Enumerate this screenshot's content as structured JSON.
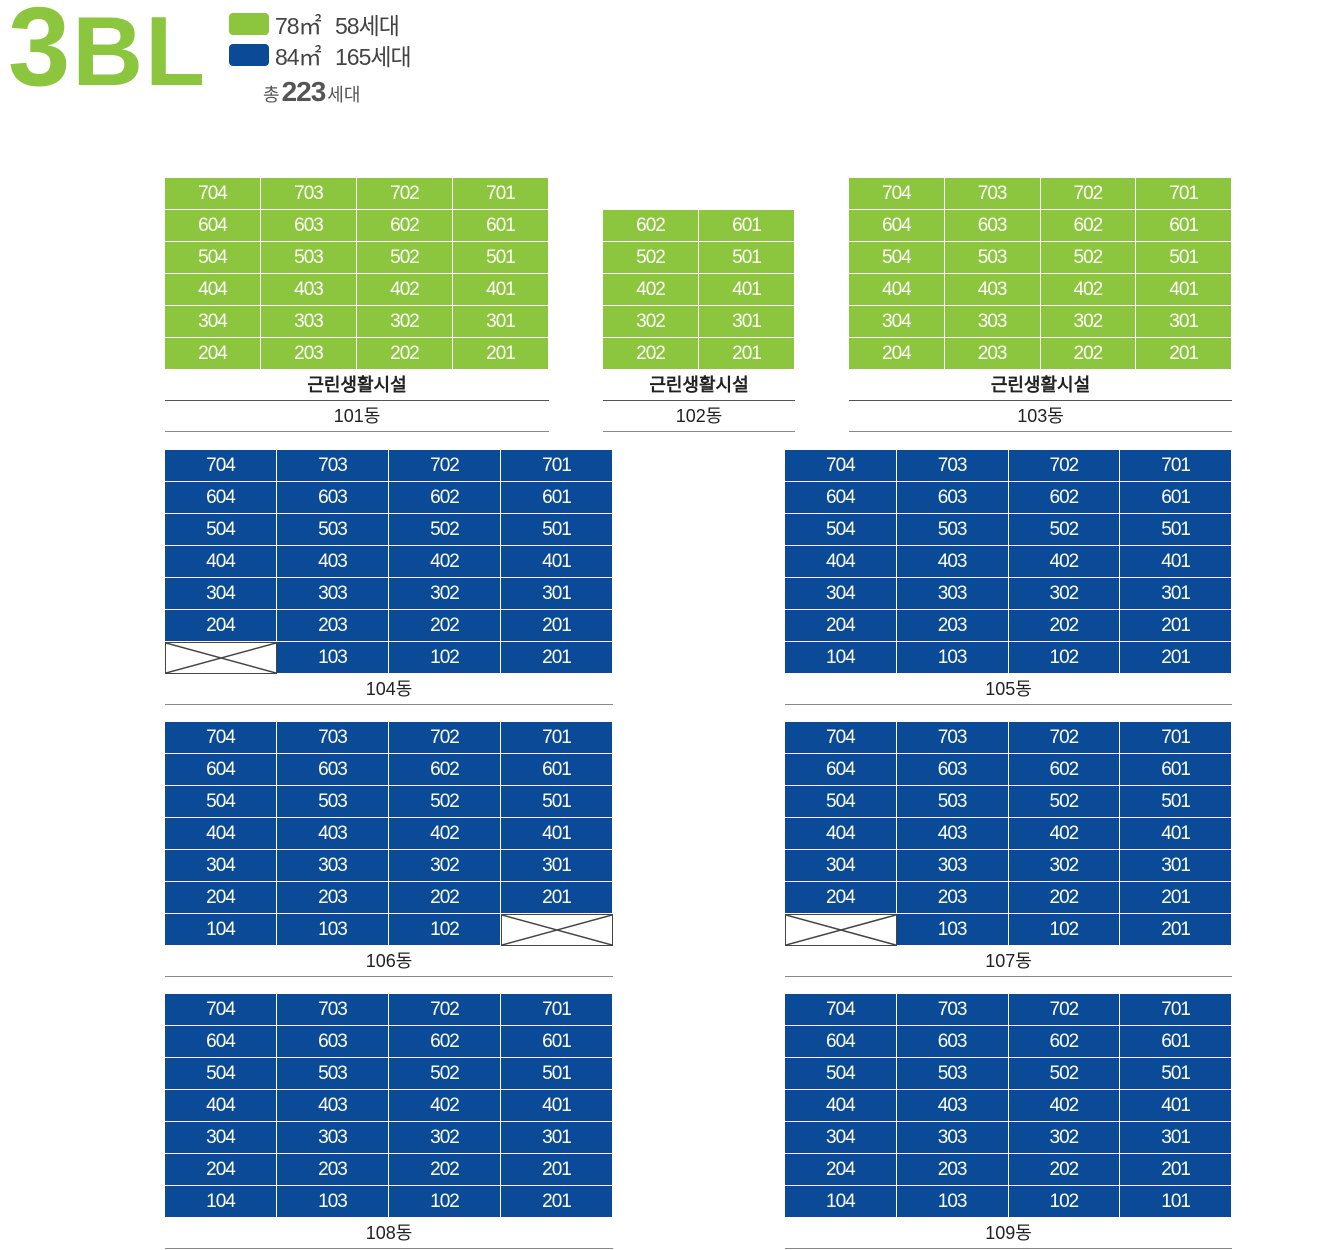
{
  "header": {
    "block_number": "3",
    "block_suffix": "BL",
    "legend": [
      {
        "color": "#8cc63f",
        "area": "78㎡",
        "units": "58세대"
      },
      {
        "color": "#0b4a96",
        "area": "84㎡",
        "units": "165세대"
      }
    ],
    "total_prefix": "총",
    "total_number": "223",
    "total_suffix": "세대"
  },
  "colors": {
    "type_78": "#8cc63f",
    "type_84": "#0b4a96"
  },
  "buildings": [
    {
      "name": "101동",
      "facility": "근린생활시설",
      "type": "78",
      "rows": [
        [
          "704",
          "703",
          "702",
          "701"
        ],
        [
          "604",
          "603",
          "602",
          "601"
        ],
        [
          "504",
          "503",
          "502",
          "501"
        ],
        [
          "404",
          "403",
          "402",
          "401"
        ],
        [
          "304",
          "303",
          "302",
          "301"
        ],
        [
          "204",
          "203",
          "202",
          "201"
        ]
      ]
    },
    {
      "name": "102동",
      "facility": "근린생활시설",
      "type": "78",
      "rows": [
        [
          "602",
          "601"
        ],
        [
          "502",
          "501"
        ],
        [
          "402",
          "401"
        ],
        [
          "302",
          "301"
        ],
        [
          "202",
          "201"
        ]
      ]
    },
    {
      "name": "103동",
      "facility": "근린생활시설",
      "type": "78",
      "rows": [
        [
          "704",
          "703",
          "702",
          "701"
        ],
        [
          "604",
          "603",
          "602",
          "601"
        ],
        [
          "504",
          "503",
          "502",
          "501"
        ],
        [
          "404",
          "403",
          "402",
          "401"
        ],
        [
          "304",
          "303",
          "302",
          "301"
        ],
        [
          "204",
          "203",
          "202",
          "201"
        ]
      ]
    },
    {
      "name": "104동",
      "facility": "",
      "type": "84",
      "rows": [
        [
          "704",
          "703",
          "702",
          "701"
        ],
        [
          "604",
          "603",
          "602",
          "601"
        ],
        [
          "504",
          "503",
          "502",
          "501"
        ],
        [
          "404",
          "403",
          "402",
          "401"
        ],
        [
          "304",
          "303",
          "302",
          "301"
        ],
        [
          "204",
          "203",
          "202",
          "201"
        ],
        [
          "",
          "103",
          "102",
          "201"
        ]
      ]
    },
    {
      "name": "105동",
      "facility": "",
      "type": "84",
      "rows": [
        [
          "704",
          "703",
          "702",
          "701"
        ],
        [
          "604",
          "603",
          "602",
          "601"
        ],
        [
          "504",
          "503",
          "502",
          "501"
        ],
        [
          "404",
          "403",
          "402",
          "401"
        ],
        [
          "304",
          "303",
          "302",
          "301"
        ],
        [
          "204",
          "203",
          "202",
          "201"
        ],
        [
          "104",
          "103",
          "102",
          "201"
        ]
      ]
    },
    {
      "name": "106동",
      "facility": "",
      "type": "84",
      "rows": [
        [
          "704",
          "703",
          "702",
          "701"
        ],
        [
          "604",
          "603",
          "602",
          "601"
        ],
        [
          "504",
          "503",
          "502",
          "501"
        ],
        [
          "404",
          "403",
          "402",
          "401"
        ],
        [
          "304",
          "303",
          "302",
          "301"
        ],
        [
          "204",
          "203",
          "202",
          "201"
        ],
        [
          "104",
          "103",
          "102",
          ""
        ]
      ]
    },
    {
      "name": "107동",
      "facility": "",
      "type": "84",
      "rows": [
        [
          "704",
          "703",
          "702",
          "701"
        ],
        [
          "604",
          "603",
          "602",
          "601"
        ],
        [
          "504",
          "503",
          "502",
          "501"
        ],
        [
          "404",
          "403",
          "402",
          "401"
        ],
        [
          "304",
          "303",
          "302",
          "301"
        ],
        [
          "204",
          "203",
          "202",
          "201"
        ],
        [
          "",
          "103",
          "102",
          "201"
        ]
      ]
    },
    {
      "name": "108동",
      "facility": "",
      "type": "84",
      "rows": [
        [
          "704",
          "703",
          "702",
          "701"
        ],
        [
          "604",
          "603",
          "602",
          "601"
        ],
        [
          "504",
          "503",
          "502",
          "501"
        ],
        [
          "404",
          "403",
          "402",
          "401"
        ],
        [
          "304",
          "303",
          "302",
          "301"
        ],
        [
          "204",
          "203",
          "202",
          "201"
        ],
        [
          "104",
          "103",
          "102",
          "201"
        ]
      ]
    },
    {
      "name": "109동",
      "facility": "",
      "type": "84",
      "rows": [
        [
          "704",
          "703",
          "702",
          "701"
        ],
        [
          "604",
          "603",
          "602",
          "601"
        ],
        [
          "504",
          "503",
          "502",
          "501"
        ],
        [
          "404",
          "403",
          "402",
          "401"
        ],
        [
          "304",
          "303",
          "302",
          "301"
        ],
        [
          "204",
          "203",
          "202",
          "201"
        ],
        [
          "104",
          "103",
          "102",
          "101"
        ]
      ]
    }
  ]
}
